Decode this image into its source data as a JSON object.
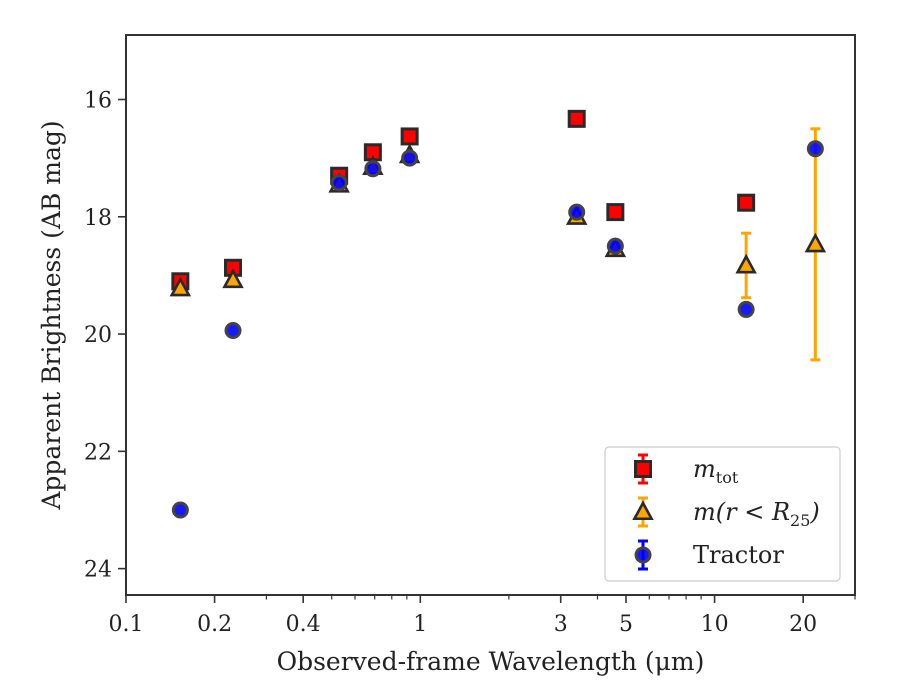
{
  "chart_data": {
    "type": "scatter",
    "title": "",
    "xlabel": "Observed-frame Wavelength (μm)",
    "ylabel": "Apparent Brightness (AB mag)",
    "xscale": "log",
    "xlim": [
      0.1,
      30
    ],
    "ylim": [
      24.45,
      14.9
    ],
    "y_inverted": true,
    "x_ticks": [
      {
        "value": 0.1,
        "label": "0.1"
      },
      {
        "value": 0.2,
        "label": "0.2"
      },
      {
        "value": 0.4,
        "label": "0.4"
      },
      {
        "value": 1,
        "label": "1"
      },
      {
        "value": 3,
        "label": "3"
      },
      {
        "value": 5,
        "label": "5"
      },
      {
        "value": 10,
        "label": "10"
      },
      {
        "value": 20,
        "label": "20"
      }
    ],
    "y_ticks": [
      {
        "value": 16,
        "label": "16"
      },
      {
        "value": 18,
        "label": "18"
      },
      {
        "value": 20,
        "label": "20"
      },
      {
        "value": 22,
        "label": "22"
      },
      {
        "value": 24,
        "label": "24"
      }
    ],
    "grid": false,
    "legend_position": "lower-right",
    "series": [
      {
        "name": "m_tot",
        "legend_main": "m",
        "legend_sub": "tot",
        "marker": "square",
        "color": "#ff0000",
        "ecolor": "#ff0000",
        "points": [
          {
            "x": 0.153,
            "y": 19.1,
            "err": 0.0
          },
          {
            "x": 0.231,
            "y": 18.87,
            "err": 0.0
          },
          {
            "x": 0.53,
            "y": 17.3,
            "err": 0.0
          },
          {
            "x": 0.69,
            "y": 16.9,
            "err": 0.0
          },
          {
            "x": 0.92,
            "y": 16.63,
            "err": 0.0
          },
          {
            "x": 3.4,
            "y": 16.33,
            "err": 0.0
          },
          {
            "x": 4.6,
            "y": 17.92,
            "err": 0.0
          },
          {
            "x": 12.8,
            "y": 17.76,
            "err": 0.0
          }
        ]
      },
      {
        "name": "m(r < R_25)",
        "legend_main": "m(r < R",
        "legend_sub": "25",
        "legend_tail": ")",
        "marker": "triangle",
        "color": "#ffa500",
        "ecolor": "#ffa500",
        "points": [
          {
            "x": 0.153,
            "y": 19.22,
            "err": 0.0
          },
          {
            "x": 0.231,
            "y": 19.08,
            "err": 0.0
          },
          {
            "x": 0.53,
            "y": 17.45,
            "err": 0.0
          },
          {
            "x": 0.69,
            "y": 17.15,
            "err": 0.0
          },
          {
            "x": 0.92,
            "y": 16.95,
            "err": 0.0
          },
          {
            "x": 3.4,
            "y": 18.0,
            "err": 0.0
          },
          {
            "x": 4.6,
            "y": 18.55,
            "err": 0.0
          },
          {
            "x": 12.8,
            "y": 18.83,
            "err": 0.55
          },
          {
            "x": 22.0,
            "y": 18.47,
            "err": 1.97
          }
        ]
      },
      {
        "name": "Tractor",
        "legend_main": "Tractor",
        "marker": "circle",
        "color": "#0000ff",
        "ecolor": "#0000ff",
        "points": [
          {
            "x": 0.153,
            "y": 23.0,
            "err": 0.0
          },
          {
            "x": 0.231,
            "y": 19.94,
            "err": 0.0
          },
          {
            "x": 0.53,
            "y": 17.42,
            "err": 0.0
          },
          {
            "x": 0.69,
            "y": 17.18,
            "err": 0.0
          },
          {
            "x": 0.92,
            "y": 17.0,
            "err": 0.0
          },
          {
            "x": 3.4,
            "y": 17.92,
            "err": 0.0
          },
          {
            "x": 4.6,
            "y": 18.5,
            "err": 0.0
          },
          {
            "x": 12.8,
            "y": 19.58,
            "err": 0.0
          },
          {
            "x": 22.0,
            "y": 16.84,
            "err": 0.0
          }
        ]
      }
    ]
  }
}
